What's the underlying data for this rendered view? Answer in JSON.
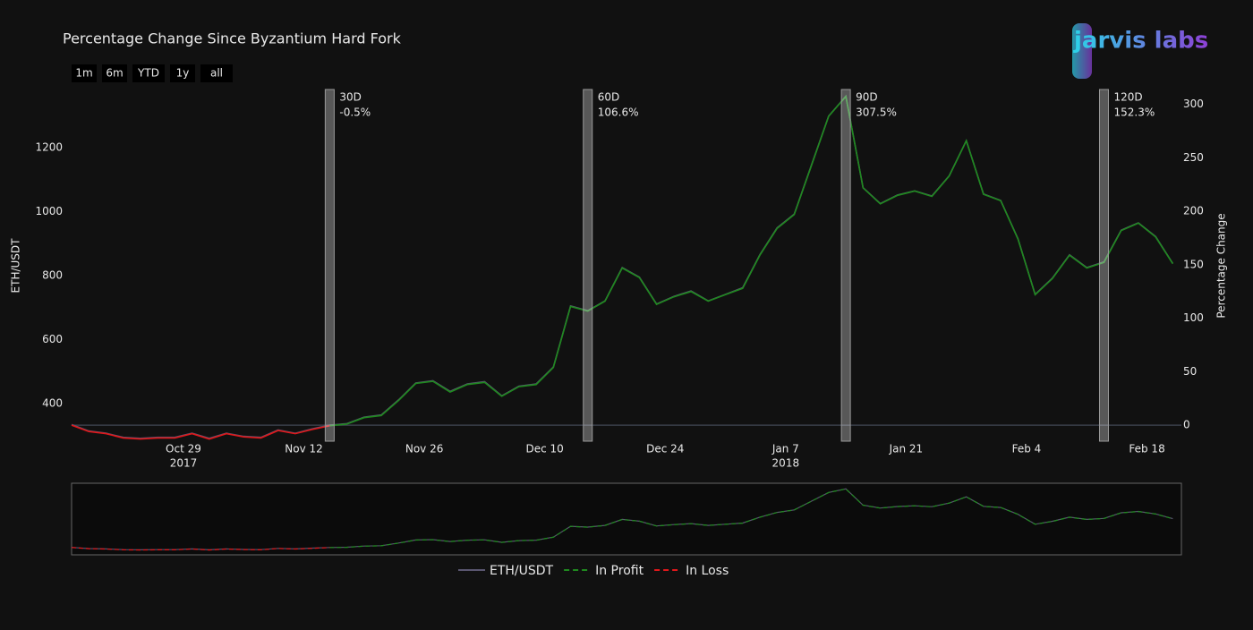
{
  "chart_data": {
    "type": "line",
    "title": "Percentage Change Since Byzantium Hard Fork",
    "logo": "jarvis labs",
    "range_buttons": [
      "1m",
      "6m",
      "YTD",
      "1y",
      "all"
    ],
    "ylabel": "ETH/USDT",
    "y2label": "Percentage Change",
    "xlim": [
      "2017-10-16",
      "2018-02-22"
    ],
    "xticks": [
      {
        "value": "2017-10-29",
        "label": "Oct 29"
      },
      {
        "value": "2017-11-12",
        "label": "Nov 12"
      },
      {
        "value": "2017-11-26",
        "label": "Nov 26"
      },
      {
        "value": "2017-12-10",
        "label": "Dec 10"
      },
      {
        "value": "2017-12-24",
        "label": "Dec 24"
      },
      {
        "value": "2018-01-07",
        "label": "Jan 7"
      },
      {
        "value": "2018-01-21",
        "label": "Jan 21"
      },
      {
        "value": "2018-02-04",
        "label": "Feb 4"
      },
      {
        "value": "2018-02-18",
        "label": "Feb 18"
      }
    ],
    "xtick_years": [
      {
        "value": "2017-10-29",
        "label": "2017"
      },
      {
        "value": "2018-01-07",
        "label": "2018"
      }
    ],
    "ylim": [
      282,
      1382
    ],
    "yticks": [
      400,
      600,
      800,
      1000,
      1200
    ],
    "y2lim": [
      -15,
      314
    ],
    "y2ticks": [
      0,
      50,
      100,
      150,
      200,
      250,
      300
    ],
    "x": [
      "2017-10-16",
      "2017-10-18",
      "2017-10-20",
      "2017-10-22",
      "2017-10-24",
      "2017-10-26",
      "2017-10-28",
      "2017-10-30",
      "2017-11-01",
      "2017-11-03",
      "2017-11-05",
      "2017-11-07",
      "2017-11-09",
      "2017-11-11",
      "2017-11-13",
      "2017-11-15",
      "2017-11-17",
      "2017-11-19",
      "2017-11-21",
      "2017-11-23",
      "2017-11-25",
      "2017-11-27",
      "2017-11-29",
      "2017-12-01",
      "2017-12-03",
      "2017-12-05",
      "2017-12-07",
      "2017-12-09",
      "2017-12-11",
      "2017-12-13",
      "2017-12-15",
      "2017-12-17",
      "2017-12-19",
      "2017-12-21",
      "2017-12-23",
      "2017-12-25",
      "2017-12-27",
      "2017-12-29",
      "2017-12-31",
      "2018-01-02",
      "2018-01-04",
      "2018-01-06",
      "2018-01-08",
      "2018-01-10",
      "2018-01-12",
      "2018-01-14",
      "2018-01-16",
      "2018-01-18",
      "2018-01-20",
      "2018-01-22",
      "2018-01-24",
      "2018-01-26",
      "2018-01-28",
      "2018-01-30",
      "2018-02-01",
      "2018-02-03",
      "2018-02-05",
      "2018-02-07",
      "2018-02-09",
      "2018-02-11",
      "2018-02-13",
      "2018-02-15",
      "2018-02-17",
      "2018-02-19",
      "2018-02-21"
    ],
    "series": [
      {
        "name": "ETH/USDT",
        "color": "#5a5670",
        "axis": "y",
        "dash": false,
        "values": [
          334,
          314,
          307,
          294,
          291,
          294,
          294,
          307,
          291,
          307,
          297,
          294,
          317,
          307,
          321,
          332,
          337,
          357,
          364,
          411,
          464,
          471,
          438,
          461,
          468,
          424,
          454,
          461,
          514,
          705,
          690,
          721,
          825,
          795,
          711,
          735,
          752,
          721,
          741,
          762,
          865,
          949,
          992,
          1146,
          1299,
          1361,
          1075,
          1025,
          1052,
          1065,
          1049,
          1112,
          1222,
          1055,
          1035,
          915,
          741,
          792,
          865,
          825,
          843,
          942,
          965,
          922,
          838
        ]
      },
      {
        "name": "In Profit",
        "color": "#1f8a1f",
        "axis": "y2",
        "dash": true,
        "values": [
          null,
          null,
          null,
          null,
          null,
          null,
          null,
          null,
          null,
          null,
          null,
          null,
          null,
          null,
          null,
          -0.5,
          1,
          7,
          9,
          23,
          39,
          41,
          31,
          38,
          40,
          27,
          36,
          38,
          54,
          111,
          106.6,
          116,
          147,
          138,
          113,
          120,
          125,
          116,
          122,
          128,
          159,
          184,
          197,
          243,
          289,
          307.5,
          222,
          207,
          215,
          219,
          214,
          233,
          266,
          216,
          210,
          174,
          122,
          137,
          159,
          147,
          152.3,
          182,
          189,
          176,
          151
        ]
      },
      {
        "name": "In Loss",
        "color": "#e0181b",
        "axis": "y2",
        "dash": true,
        "values": [
          0,
          -6,
          -8,
          -12,
          -13,
          -12,
          -12,
          -8,
          -13,
          -8,
          -11,
          -12,
          -5,
          -8,
          -4,
          -0.5,
          null,
          null,
          null,
          null,
          null,
          null,
          null,
          null,
          null,
          null,
          null,
          null,
          null,
          null,
          null,
          null,
          null,
          null,
          null,
          null,
          null,
          null,
          null,
          null,
          null,
          null,
          null,
          null,
          null,
          null,
          null,
          null,
          null,
          null,
          null,
          null,
          null,
          null,
          null,
          null,
          null,
          null,
          null,
          null,
          null,
          null,
          null,
          null,
          null
        ]
      }
    ],
    "annotations": [
      {
        "x": "2017-11-15",
        "title": "30D",
        "text": "-0.5%"
      },
      {
        "x": "2017-12-15",
        "title": "60D",
        "text": "106.6%"
      },
      {
        "x": "2018-01-14",
        "title": "90D",
        "text": "307.5%"
      },
      {
        "x": "2018-02-13",
        "title": "120D",
        "text": "152.3%"
      }
    ]
  }
}
